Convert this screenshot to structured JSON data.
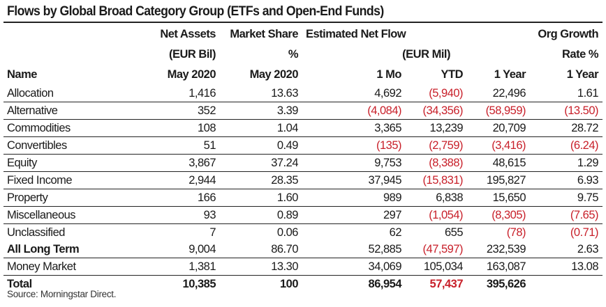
{
  "title": "Flows by Global Broad Category Group (ETFs and Open-End Funds)",
  "header": {
    "row1": {
      "net_assets": "Net Assets",
      "market_share": "Market Share",
      "est_net_flow": "Estimated Net Flow",
      "org_growth": "Org Growth"
    },
    "row2": {
      "net_assets": "(EUR Bil)",
      "market_share": "%",
      "est_net_flow": "(EUR Mil)",
      "org_growth": "Rate %"
    },
    "row3": {
      "name": "Name",
      "net_assets": "May 2020",
      "market_share": "May 2020",
      "flow_1mo": "1 Mo",
      "flow_ytd": "YTD",
      "flow_1yr": "1 Year",
      "org_growth_1yr": "1 Year"
    }
  },
  "rows": [
    {
      "name": "Allocation",
      "net_assets": "1,416",
      "market_share": "13.63",
      "flow_1mo": "4,692",
      "flow_ytd": "(5,940)",
      "flow_1yr": "22,496",
      "org_growth": "1.61"
    },
    {
      "name": "Alternative",
      "net_assets": "352",
      "market_share": "3.39",
      "flow_1mo": "(4,084)",
      "flow_ytd": "(34,356)",
      "flow_1yr": "(58,959)",
      "org_growth": "(13.50)"
    },
    {
      "name": "Commodities",
      "net_assets": "108",
      "market_share": "1.04",
      "flow_1mo": "3,365",
      "flow_ytd": "13,239",
      "flow_1yr": "20,709",
      "org_growth": "28.72"
    },
    {
      "name": "Convertibles",
      "net_assets": "51",
      "market_share": "0.49",
      "flow_1mo": "(135)",
      "flow_ytd": "(2,759)",
      "flow_1yr": "(3,416)",
      "org_growth": "(6.24)"
    },
    {
      "name": "Equity",
      "net_assets": "3,867",
      "market_share": "37.24",
      "flow_1mo": "9,753",
      "flow_ytd": "(8,388)",
      "flow_1yr": "48,615",
      "org_growth": "1.29"
    },
    {
      "name": "Fixed Income",
      "net_assets": "2,944",
      "market_share": "28.35",
      "flow_1mo": "37,945",
      "flow_ytd": "(15,831)",
      "flow_1yr": "195,827",
      "org_growth": "6.93"
    },
    {
      "name": "Property",
      "net_assets": "166",
      "market_share": "1.60",
      "flow_1mo": "989",
      "flow_ytd": "6,838",
      "flow_1yr": "15,650",
      "org_growth": "9.75"
    },
    {
      "name": "Miscellaneous",
      "net_assets": "93",
      "market_share": "0.89",
      "flow_1mo": "297",
      "flow_ytd": "(1,054)",
      "flow_1yr": "(8,305)",
      "org_growth": "(7.65)"
    },
    {
      "name": "Unclassified",
      "net_assets": "7",
      "market_share": "0.06",
      "flow_1mo": "62",
      "flow_ytd": "655",
      "flow_1yr": "(78)",
      "org_growth": "(0.71)"
    },
    {
      "name": "All Long Term",
      "net_assets": "9,004",
      "market_share": "86.70",
      "flow_1mo": "52,885",
      "flow_ytd": "(47,597)",
      "flow_1yr": "232,539",
      "org_growth": "2.63"
    },
    {
      "name": "Money Market",
      "net_assets": "1,381",
      "market_share": "13.30",
      "flow_1mo": "34,069",
      "flow_ytd": "105,034",
      "flow_1yr": "163,087",
      "org_growth": "13.08"
    }
  ],
  "total": {
    "name": "Total",
    "net_assets": "10,385",
    "market_share": "100",
    "flow_1mo": "86,954",
    "flow_ytd": "57,437",
    "flow_1yr": "395,626",
    "org_growth": ""
  },
  "source": "Source: Morningstar Direct.",
  "colors": {
    "negative": "#c8202a",
    "text": "#1a1a1a",
    "rule": "#222222"
  }
}
